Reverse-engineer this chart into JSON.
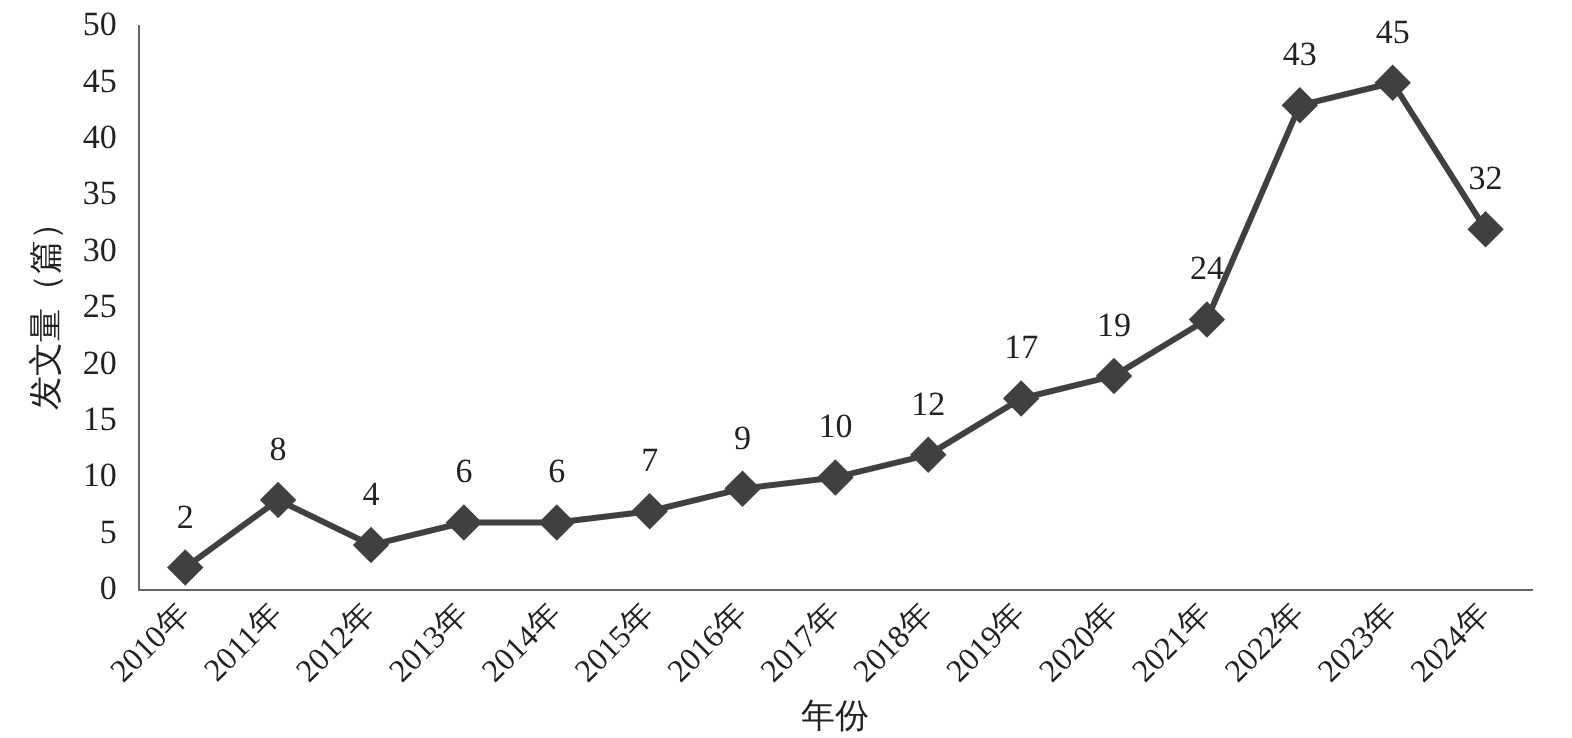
{
  "chart_data": {
    "type": "line",
    "xlabel": "年份",
    "ylabel": "发文量（篇）",
    "categories": [
      "2010年",
      "2011年",
      "2012年",
      "2013年",
      "2014年",
      "2015年",
      "2016年",
      "2017年",
      "2018年",
      "2019年",
      "2020年",
      "2021年",
      "2022年",
      "2023年",
      "2024年"
    ],
    "series": [
      {
        "color": "#404040",
        "values": [
          2,
          8,
          4,
          6,
          6,
          7,
          9,
          10,
          12,
          17,
          19,
          24,
          43,
          45,
          32
        ]
      }
    ],
    "ylim": [
      0,
      50
    ],
    "yticks": [
      0,
      5,
      10,
      15,
      20,
      25,
      30,
      35,
      40,
      45,
      50
    ],
    "grid": false,
    "legend": false,
    "marker": "diamond",
    "line_style": "solid",
    "data_labels": true
  }
}
